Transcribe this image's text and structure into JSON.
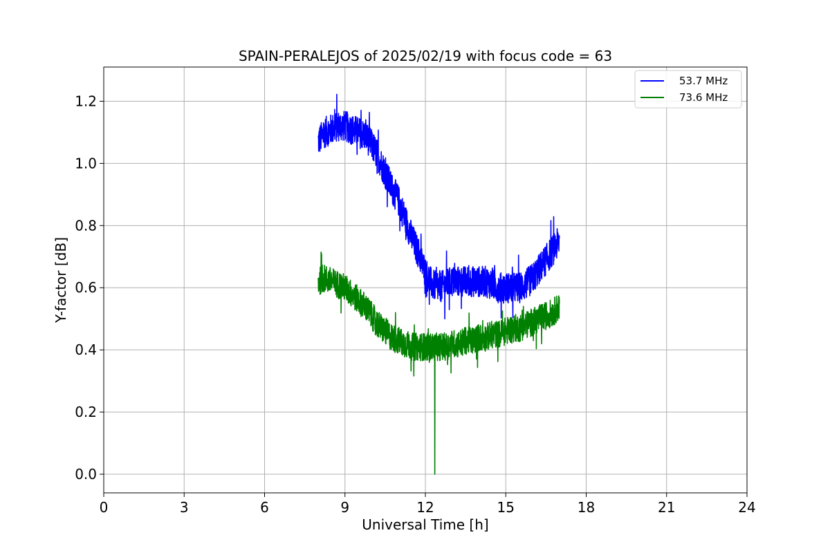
{
  "chart_data": {
    "type": "line",
    "title": "SPAIN-PERALEJOS of 2025/02/19 with focus code = 63",
    "xlabel": "Universal Time [h]",
    "ylabel": "Y-factor [dB]",
    "xlim": [
      0,
      24
    ],
    "ylim": [
      -0.06,
      1.31
    ],
    "xticks": [
      0,
      3,
      6,
      9,
      12,
      15,
      18,
      21,
      24
    ],
    "xtick_labels": [
      "0",
      "3",
      "6",
      "9",
      "12",
      "15",
      "18",
      "21",
      "24"
    ],
    "yticks": [
      0.0,
      0.2,
      0.4,
      0.6,
      0.8,
      1.0,
      1.2
    ],
    "ytick_labels": [
      "0.0",
      "0.2",
      "0.4",
      "0.6",
      "0.8",
      "1.0",
      "1.2"
    ],
    "grid": true,
    "legend_position": "top-right",
    "series": [
      {
        "name": "53.7 MHz",
        "color": "#0000ff",
        "x": [
          8.0,
          8.25,
          8.5,
          8.75,
          9.0,
          9.25,
          9.5,
          9.75,
          10.0,
          10.25,
          10.5,
          10.75,
          11.0,
          11.25,
          11.5,
          11.75,
          12.0,
          12.25,
          12.5,
          12.75,
          13.0,
          13.25,
          13.5,
          13.75,
          14.0,
          14.25,
          14.5,
          14.75,
          15.0,
          15.25,
          15.5,
          15.75,
          16.0,
          16.25,
          16.5,
          16.75,
          17.0
        ],
        "y": [
          1.07,
          1.1,
          1.11,
          1.12,
          1.12,
          1.11,
          1.1,
          1.09,
          1.06,
          1.02,
          0.97,
          0.92,
          0.88,
          0.82,
          0.76,
          0.71,
          0.65,
          0.61,
          0.6,
          0.61,
          0.62,
          0.62,
          0.62,
          0.62,
          0.62,
          0.62,
          0.61,
          0.6,
          0.6,
          0.6,
          0.6,
          0.61,
          0.63,
          0.66,
          0.69,
          0.72,
          0.75
        ],
        "noise_amplitude": 0.05
      },
      {
        "name": "73.6 MHz",
        "color": "#008000",
        "x": [
          8.0,
          8.25,
          8.5,
          8.75,
          9.0,
          9.25,
          9.5,
          9.75,
          10.0,
          10.25,
          10.5,
          10.75,
          11.0,
          11.25,
          11.5,
          11.75,
          12.0,
          12.25,
          12.5,
          12.75,
          13.0,
          13.25,
          13.5,
          13.75,
          14.0,
          14.25,
          14.5,
          14.75,
          15.0,
          15.25,
          15.5,
          15.75,
          16.0,
          16.25,
          16.5,
          16.75,
          17.0
        ],
        "y": [
          0.62,
          0.63,
          0.62,
          0.61,
          0.6,
          0.58,
          0.56,
          0.54,
          0.51,
          0.48,
          0.46,
          0.44,
          0.43,
          0.42,
          0.41,
          0.41,
          0.41,
          0.41,
          0.41,
          0.41,
          0.42,
          0.42,
          0.43,
          0.43,
          0.44,
          0.44,
          0.45,
          0.45,
          0.46,
          0.47,
          0.47,
          0.48,
          0.49,
          0.5,
          0.51,
          0.52,
          0.54
        ],
        "noise_amplitude": 0.045,
        "spike": {
          "x": 12.35,
          "y": 0.0
        }
      }
    ]
  }
}
